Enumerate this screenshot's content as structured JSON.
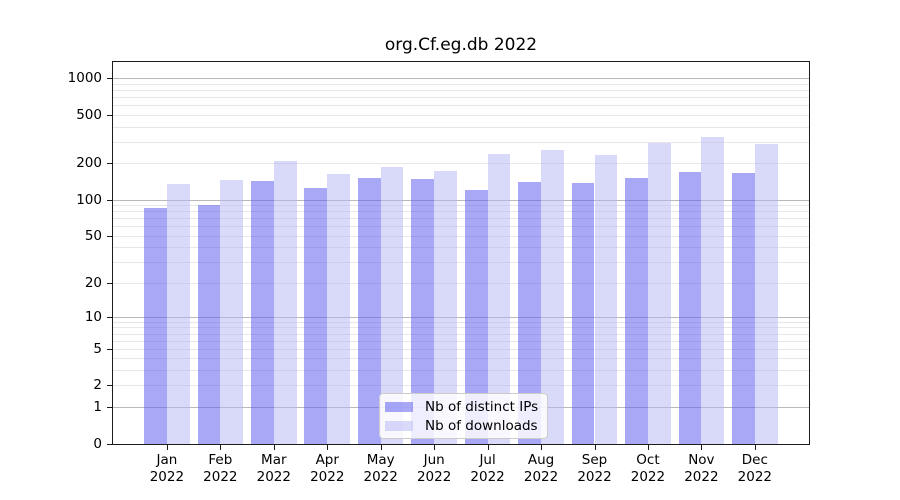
{
  "title": "org.Cf.eg.db 2022",
  "chart_data": {
    "type": "bar",
    "title": "org.Cf.eg.db 2022",
    "categories": [
      "Jan 2022",
      "Feb 2022",
      "Mar 2022",
      "Apr 2022",
      "May 2022",
      "Jun 2022",
      "Jul 2022",
      "Aug 2022",
      "Sep 2022",
      "Oct 2022",
      "Nov 2022",
      "Dec 2022"
    ],
    "series": [
      {
        "name": "Nb of distinct IPs",
        "color": "#6161f1",
        "alpha": 0.55,
        "values": [
          85,
          90,
          142,
          124,
          151,
          147,
          121,
          140,
          138,
          151,
          170,
          167
        ]
      },
      {
        "name": "Nb of downloads",
        "color": "#b3b3f5",
        "alpha": 0.5,
        "values": [
          136,
          145,
          209,
          162,
          187,
          172,
          241,
          257,
          233,
          295,
          328,
          287
        ]
      }
    ],
    "xlabel": "",
    "ylabel": "",
    "y_scale": "log1p",
    "ylim": [
      0,
      1390
    ],
    "y_ticks": [
      0,
      1,
      2,
      5,
      10,
      20,
      50,
      100,
      200,
      500,
      1000
    ],
    "grid": true,
    "grid_major_values": [
      1,
      10,
      100,
      1000
    ],
    "grid_minor_values": [
      2,
      3,
      4,
      5,
      6,
      7,
      8,
      9,
      20,
      30,
      40,
      50,
      60,
      70,
      80,
      90,
      200,
      300,
      400,
      500,
      600,
      700,
      800,
      900
    ],
    "legend_position": "lower center",
    "colors": {
      "axis": "#1c1c1c",
      "grid_major": "#b9b9b9",
      "grid_minor": "#e7e7e7",
      "background": "#ffffff"
    }
  }
}
